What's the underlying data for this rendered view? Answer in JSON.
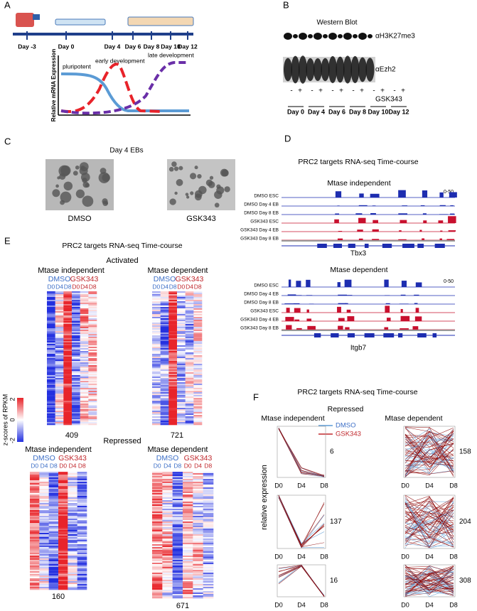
{
  "panels": {
    "A": {
      "label": "A",
      "timeline": [
        "Day -3",
        "Day 0",
        "Day 4",
        "Day 6",
        "Day 8",
        "Day 10",
        "Day 12"
      ],
      "curves": [
        "pluripotent",
        "early development",
        "late development"
      ],
      "y_label": "Relative mRNA Expression"
    },
    "B": {
      "label": "B",
      "title": "Western Blot",
      "rows": [
        "αH3K27me3",
        "αEzh2"
      ],
      "treatment": "GSK343",
      "signs": [
        "-",
        "+"
      ],
      "days": [
        "Day 0",
        "Day 4",
        "Day 6",
        "Day 8",
        "Day 10",
        "Day 12"
      ]
    },
    "C": {
      "label": "C",
      "title": "Day 4 EBs",
      "images": [
        "DMSO",
        "GSK343"
      ]
    },
    "D": {
      "label": "D",
      "title": "PRC2 targets RNA-seq Time-course",
      "rows": [
        "DMSO ESC",
        "DMSO Day 4 EB",
        "DMSO Day 8 EB",
        "GSK343 ESC",
        "GSK343 Day 4 EB",
        "GSK343 Day 8 EB"
      ],
      "tracks": [
        {
          "title": "Mtase independent",
          "scale": "0-50",
          "gene": "Tbx3"
        },
        {
          "title": "Mtase dependent",
          "scale": "0-50",
          "gene": "Itgb7"
        }
      ]
    },
    "E": {
      "label": "E",
      "title": "PRC2 targets RNA-seq Time-course",
      "groups": [
        "DMSO",
        "GSK343"
      ],
      "cols": [
        "D0",
        "D4",
        "D8"
      ],
      "colorbar": {
        "label": "z-scores of RPKM",
        "ticks": [
          -2,
          0,
          2
        ]
      },
      "sections": [
        {
          "title": "Activated",
          "maps": [
            {
              "title": "Mtase independent",
              "count": "409"
            },
            {
              "title": "Mtase dependent",
              "count": "721"
            }
          ]
        },
        {
          "title": "Repressed",
          "maps": [
            {
              "title": "Mtase independent",
              "count": "160"
            },
            {
              "title": "Mtase dependent",
              "count": "671"
            }
          ]
        }
      ]
    },
    "F": {
      "label": "F",
      "title": "PRC2 targets RNA-seq Time-course",
      "subtitle": "Repressed",
      "columns": [
        "Mtase independent",
        "Mtase dependent"
      ],
      "legend": [
        "DMSO",
        "GSK343"
      ],
      "y_label": "relative expression",
      "xticks": [
        "D0",
        "D4",
        "D8"
      ],
      "counts": [
        [
          "6",
          "137",
          "16"
        ],
        [
          "158",
          "204",
          "308"
        ]
      ]
    }
  }
}
